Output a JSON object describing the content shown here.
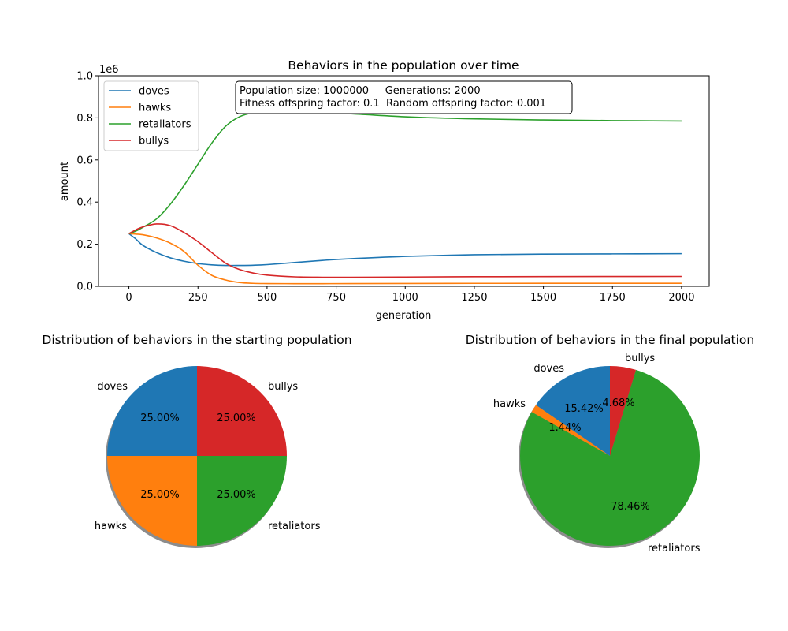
{
  "chart_data": [
    {
      "type": "line",
      "title": "Behaviors in the population over time",
      "xlabel": "generation",
      "ylabel": "amount",
      "y_scale_text": "1e6",
      "xlim": [
        -110,
        2100
      ],
      "ylim": [
        0,
        1000000
      ],
      "x_ticks": [
        0,
        250,
        500,
        750,
        1000,
        1250,
        1500,
        1750,
        2000
      ],
      "y_ticks": [
        0,
        200000,
        400000,
        600000,
        800000,
        1000000
      ],
      "y_tick_labels": [
        "0.0",
        "0.2",
        "0.4",
        "0.6",
        "0.8",
        "1.0"
      ],
      "legend_position": "upper-left",
      "annotation_lines": [
        "Population size: 1000000     Generations: 2000",
        "Fitness offspring factor: 0.1  Random offspring factor: 0.001"
      ],
      "x": [
        0,
        25,
        50,
        100,
        150,
        200,
        250,
        300,
        350,
        400,
        450,
        500,
        600,
        700,
        800,
        1000,
        1250,
        1500,
        1750,
        2000
      ],
      "series": [
        {
          "name": "doves",
          "color": "#1f77b4",
          "values": [
            250000,
            225000,
            195000,
            160000,
            135000,
            119000,
            108000,
            102000,
            99000,
            99000,
            100000,
            103000,
            113000,
            123000,
            131000,
            142000,
            150000,
            153000,
            154000,
            155000
          ]
        },
        {
          "name": "hawks",
          "color": "#ff7f0e",
          "values": [
            250000,
            248000,
            245000,
            230000,
            205000,
            165000,
            100000,
            52000,
            30000,
            18000,
            14000,
            13000,
            12500,
            12500,
            13000,
            13500,
            14000,
            14200,
            14300,
            14400
          ]
        },
        {
          "name": "retaliators",
          "color": "#2ca02c",
          "values": [
            250000,
            262000,
            280000,
            320000,
            390000,
            480000,
            580000,
            680000,
            760000,
            805000,
            825000,
            832000,
            832000,
            827000,
            820000,
            805000,
            795000,
            790000,
            787000,
            785000
          ]
        },
        {
          "name": "bullys",
          "color": "#d62728",
          "values": [
            250000,
            268000,
            282000,
            296000,
            288000,
            255000,
            212000,
            160000,
            110000,
            80000,
            63000,
            53000,
            45000,
            43000,
            43000,
            44000,
            45500,
            46000,
            46500,
            46800
          ]
        }
      ]
    },
    {
      "type": "pie",
      "title": "Distribution of behaviors in the starting population",
      "labels": [
        "doves",
        "hawks",
        "retaliators",
        "bullys"
      ],
      "values": [
        25.0,
        25.0,
        25.0,
        25.0
      ],
      "pct_labels": [
        "25.00%",
        "25.00%",
        "25.00%",
        "25.00%"
      ],
      "colors": [
        "#1f77b4",
        "#ff7f0e",
        "#2ca02c",
        "#d62728"
      ]
    },
    {
      "type": "pie",
      "title": "Distribution of behaviors in the final population",
      "labels": [
        "doves",
        "hawks",
        "retaliators",
        "bullys"
      ],
      "values": [
        15.42,
        1.44,
        78.46,
        4.68
      ],
      "pct_labels": [
        "15.42%",
        "1.44%",
        "78.46%",
        "4.68%"
      ],
      "colors": [
        "#1f77b4",
        "#ff7f0e",
        "#2ca02c",
        "#d62728"
      ]
    }
  ]
}
